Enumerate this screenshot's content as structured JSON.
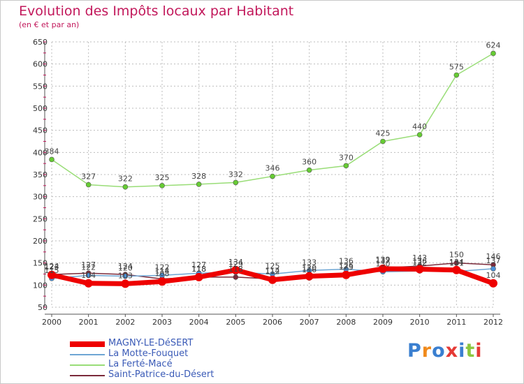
{
  "title": "Evolution des Impôts locaux par Habitant",
  "subtitle": "(en € et par an)",
  "logo_text": "Proxiti",
  "colors": {
    "title": "#c2185b",
    "grid": "#bdbdbd",
    "axis": "#555555",
    "legend_text": "#3b5bb7"
  },
  "chart_data": {
    "type": "line",
    "title": "Evolution des Impôts locaux par Habitant",
    "subtitle": "(en € et par an)",
    "xlabel": "",
    "ylabel": "",
    "x": [
      "2000",
      "2001",
      "2002",
      "2003",
      "2004",
      "2005",
      "2006",
      "2007",
      "2008",
      "2009",
      "2010",
      "2011",
      "2012"
    ],
    "ylim": [
      50,
      650
    ],
    "yticks": [
      50,
      100,
      150,
      200,
      250,
      300,
      350,
      400,
      450,
      500,
      550,
      600,
      650
    ],
    "grid": "horizontal dashed",
    "series": [
      {
        "name": "MAGNY-LE-DéSERT",
        "color": "#ee0000",
        "marker_color": "#ee0000",
        "values": [
          123,
          104,
          103,
          108,
          118,
          134,
          112,
          120,
          123,
          137,
          136,
          134,
          104
        ],
        "labels": [
          "123",
          "104",
          "103",
          "108",
          "118",
          "134",
          "112",
          "120",
          "123",
          "137",
          "136",
          "134",
          "104"
        ]
      },
      {
        "name": "La Motte-Fouquet",
        "color": "#6ea6d4",
        "marker_color": "#4a90d9",
        "values": [
          115,
          122,
          120,
          122,
          127,
          129,
          125,
          133,
          136,
          130,
          132,
          131,
          137
        ],
        "labels": [
          "115",
          "122",
          "120",
          "122",
          "127",
          "129",
          "125",
          "133",
          "136",
          "130",
          "132",
          "131",
          "137"
        ]
      },
      {
        "name": "La Ferté-Macé",
        "color": "#99dd77",
        "marker_color": "#66cc33",
        "values": [
          384,
          327,
          322,
          325,
          328,
          332,
          346,
          360,
          370,
          425,
          440,
          575,
          624
        ],
        "labels": [
          "384",
          "327",
          "322",
          "325",
          "328",
          "332",
          "346",
          "360",
          "370",
          "425",
          "440",
          "575",
          "624"
        ]
      },
      {
        "name": "Saint-Patrice-du-Désert",
        "color": "#7b2a3a",
        "marker_color": "#7b2a3a",
        "values": [
          124,
          127,
          124,
          114,
          118,
          118,
          114,
          116,
          126,
          139,
          143,
          150,
          146
        ],
        "labels": [
          "124",
          "127",
          "124",
          "114",
          "118",
          "118",
          "114",
          "116",
          "126",
          "139",
          "143",
          "150",
          "146"
        ]
      }
    ]
  }
}
